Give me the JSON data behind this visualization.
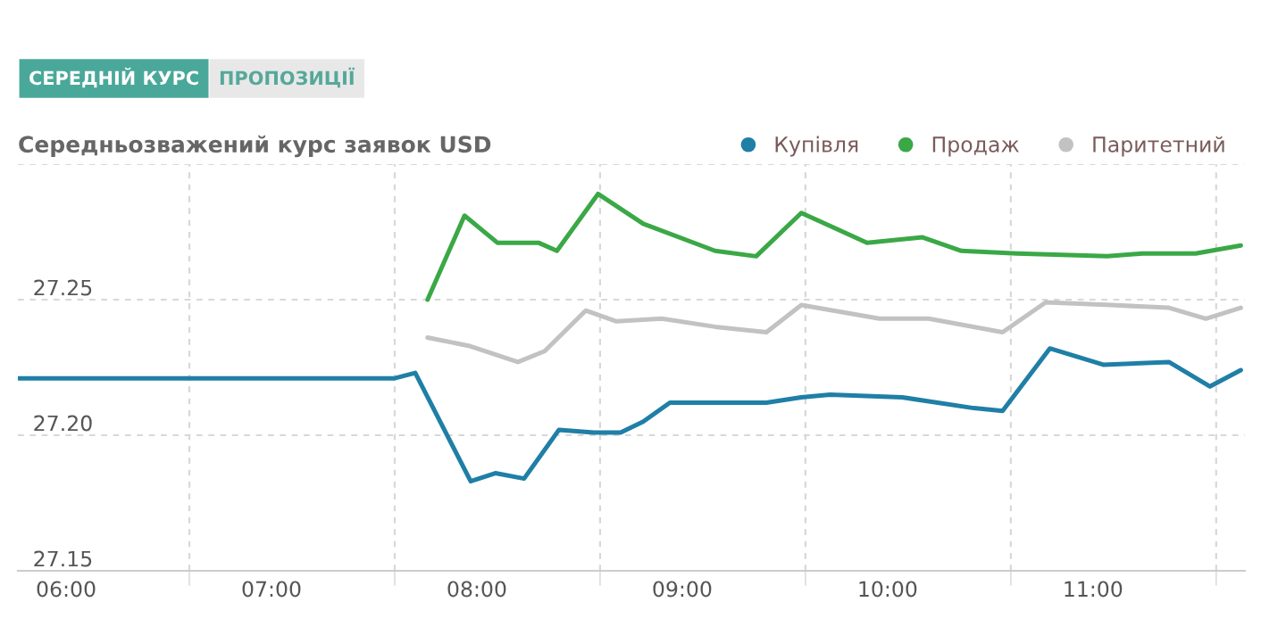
{
  "chart_data": {
    "type": "line",
    "title": "Середньозважений курс заявок USD",
    "annotations": [
      "СЕРЕДНІЙ КУРС",
      "ПРОПОЗИЦІЇ"
    ],
    "series": [
      {
        "name": "Купівля",
        "color": "#1f7fa6",
        "x": [
          5.77,
          7.6,
          7.7,
          7.97,
          8.09,
          8.23,
          8.4,
          8.57,
          8.7,
          8.81,
          8.94,
          9.41,
          9.58,
          9.72,
          10.07,
          10.42,
          10.56,
          10.79,
          11.05,
          11.37,
          11.57,
          11.72
        ],
        "values": [
          27.221,
          27.221,
          27.223,
          27.183,
          27.186,
          27.184,
          27.202,
          27.201,
          27.201,
          27.205,
          27.212,
          27.212,
          27.214,
          27.215,
          27.214,
          27.21,
          27.209,
          27.232,
          27.226,
          27.227,
          27.218,
          27.224
        ]
      },
      {
        "name": "Продаж",
        "color": "#3aa846",
        "x": [
          7.76,
          7.94,
          8.1,
          8.3,
          8.39,
          8.59,
          8.81,
          9.16,
          9.36,
          9.58,
          9.9,
          10.17,
          10.36,
          10.63,
          11.07,
          11.24,
          11.5,
          11.72
        ],
        "values": [
          27.25,
          27.281,
          27.271,
          27.271,
          27.268,
          27.289,
          27.278,
          27.268,
          27.266,
          27.282,
          27.271,
          27.273,
          27.268,
          27.267,
          27.266,
          27.267,
          27.267,
          27.27
        ]
      },
      {
        "name": "Паритетний",
        "color": "#c2c2c2",
        "x": [
          7.76,
          7.96,
          8.2,
          8.33,
          8.53,
          8.68,
          8.9,
          9.16,
          9.41,
          9.58,
          9.96,
          10.2,
          10.56,
          10.77,
          11.09,
          11.37,
          11.55,
          11.72
        ],
        "values": [
          27.236,
          27.233,
          27.227,
          27.231,
          27.246,
          27.242,
          27.243,
          27.24,
          27.238,
          27.248,
          27.243,
          27.243,
          27.238,
          27.249,
          27.248,
          27.247,
          27.243,
          27.247
        ]
      }
    ],
    "xlim": [
      5.765,
      11.74
    ],
    "xticks": [
      {
        "value": 6,
        "label": "06:00"
      },
      {
        "value": 6.6,
        "label": null
      },
      {
        "value": 7,
        "label": "07:00"
      },
      {
        "value": 7.6,
        "label": null
      },
      {
        "value": 8,
        "label": "08:00"
      },
      {
        "value": 8.6,
        "label": null
      },
      {
        "value": 9,
        "label": "09:00"
      },
      {
        "value": 9.6,
        "label": null
      },
      {
        "value": 10,
        "label": "10:00"
      },
      {
        "value": 10.6,
        "label": null
      },
      {
        "value": 11,
        "label": "11:00"
      },
      {
        "value": 11.6,
        "label": null
      }
    ],
    "ylim": [
      27.15,
      27.3
    ],
    "yticks": [
      27.15,
      {
        "value": 27.2,
        "label": "27.20"
      },
      27.25,
      {
        "value": 27.3,
        "label": null
      }
    ],
    "grid": true,
    "legend": "top right",
    "marker": "none",
    "line_style": "solid"
  }
}
